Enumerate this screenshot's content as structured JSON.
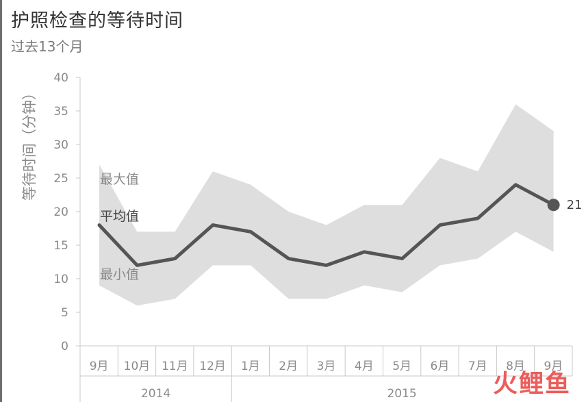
{
  "title": "护照检查的等待时间",
  "subtitle": "过去13个月",
  "watermark": "火鲤鱼",
  "colors": {
    "band": "#dedede",
    "line": "#555555",
    "axis": "#c8c8c8",
    "tick_text": "#8a8a8a",
    "label_dark": "#444444",
    "label_light": "#8a8a8a"
  },
  "chart_data": {
    "type": "area",
    "title": "护照检查的等待时间",
    "subtitle": "过去13个月",
    "ylabel": "等待时间（分钟）",
    "ylim": [
      0,
      40
    ],
    "yticks": [
      0,
      5,
      10,
      15,
      20,
      25,
      30,
      35,
      40
    ],
    "categories": [
      "9月",
      "10月",
      "11月",
      "12月",
      "1月",
      "2月",
      "3月",
      "4月",
      "5月",
      "6月",
      "7月",
      "8月",
      "9月"
    ],
    "year_groups": [
      {
        "label": "2014",
        "span": 4
      },
      {
        "label": "2015",
        "span": 9
      }
    ],
    "series": [
      {
        "name": "最大值",
        "values": [
          27,
          17,
          17,
          26,
          24,
          20,
          18,
          21,
          21,
          28,
          26,
          36,
          32
        ]
      },
      {
        "name": "平均值",
        "values": [
          18,
          12,
          13,
          18,
          17,
          13,
          12,
          14,
          13,
          18,
          19,
          24,
          21
        ]
      },
      {
        "name": "最小值",
        "values": [
          9,
          6,
          7,
          12,
          12,
          7,
          7,
          9,
          8,
          12,
          13,
          17,
          14
        ]
      }
    ],
    "end_label": "21",
    "grid": false
  }
}
